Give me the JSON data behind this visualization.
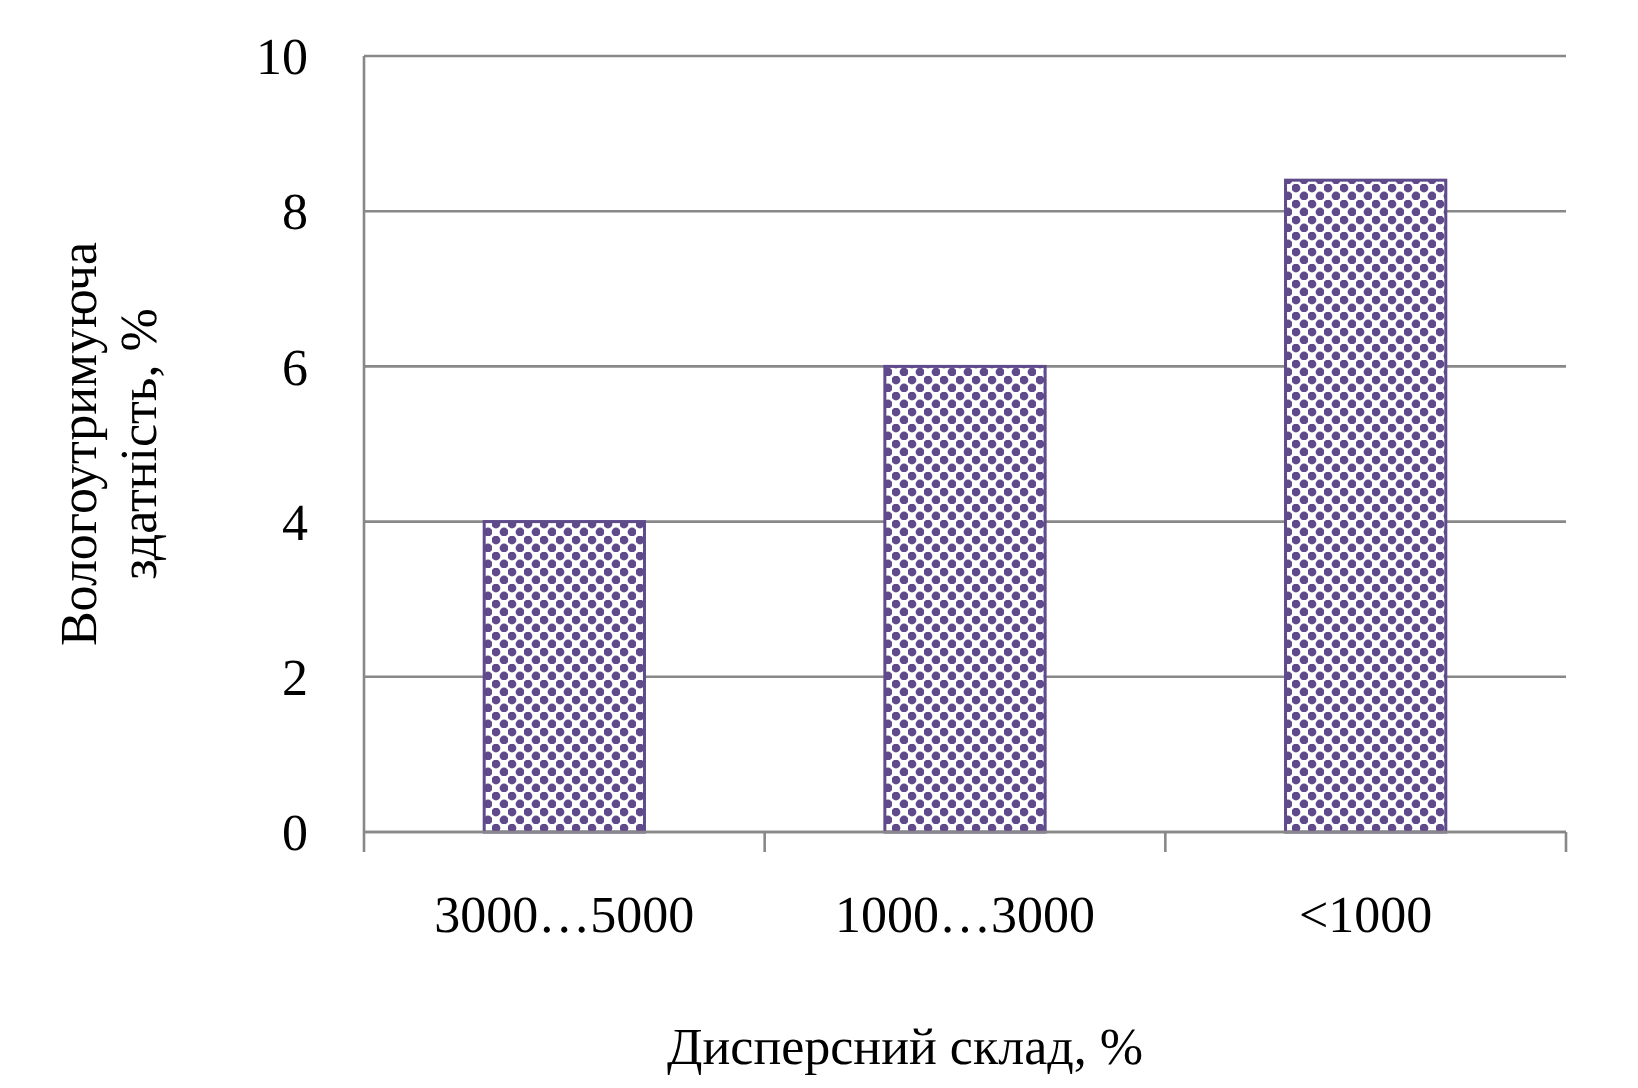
{
  "chart_data": {
    "type": "bar",
    "xlabel": "Дисперсний склад, %",
    "ylabel": "Вологоутримуюча здатність, %",
    "categories": [
      "3000…5000",
      "1000…3000",
      "<1000"
    ],
    "values": [
      4,
      6,
      8.4
    ],
    "color": "#5f4b8b",
    "ylim": [
      0,
      10
    ],
    "yticks": [
      0,
      2,
      4,
      6,
      8,
      10
    ],
    "grid": "y"
  }
}
